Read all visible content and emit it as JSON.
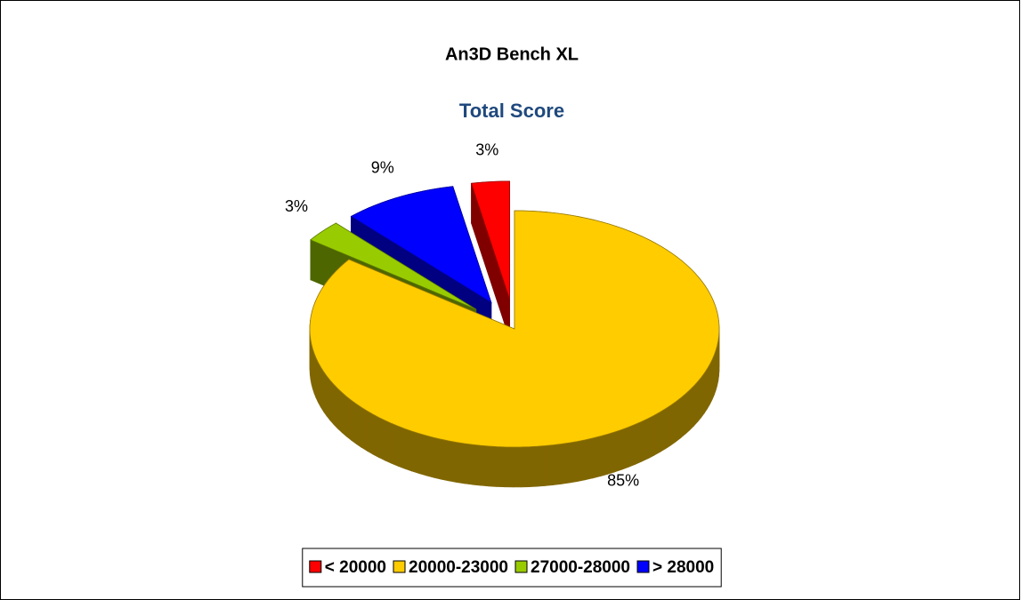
{
  "chart_data": {
    "type": "pie",
    "title": "An3D Bench XL",
    "subtitle": "Total Score",
    "categories": [
      "< 20000",
      "20000-23000",
      "27000-28000",
      "> 28000"
    ],
    "values": [
      3,
      85,
      3,
      9
    ],
    "value_labels": [
      "3%",
      "85%",
      "3%",
      "9%"
    ],
    "colors": [
      "#ff0000",
      "#ffcc00",
      "#99cc00",
      "#0000ff"
    ],
    "legend": "bottom"
  }
}
